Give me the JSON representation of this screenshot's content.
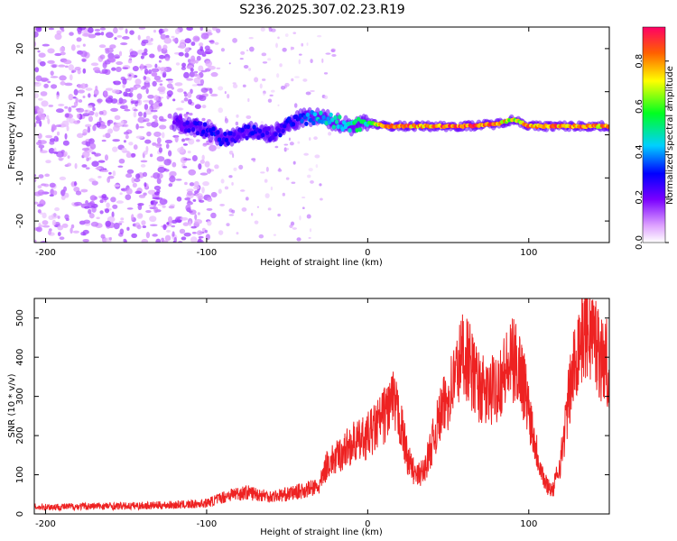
{
  "figure_title": "S236.2025.307.02.23.R19",
  "chart_data": [
    {
      "type": "heatmap",
      "title": "S236.2025.307.02.23.R19",
      "xlabel": "Height of straight line (km)",
      "ylabel": "Frequency (Hz)",
      "xlim": [
        -207,
        150
      ],
      "ylim": [
        -25,
        25
      ],
      "xticks": [
        -200,
        -100,
        0,
        100
      ],
      "yticks": [
        -20,
        -10,
        0,
        10,
        20
      ],
      "colorbar": {
        "label": "Normalized spectral amplitude",
        "range": [
          0,
          0.95
        ],
        "ticks": [
          0.0,
          0.2,
          0.4,
          0.6,
          0.8
        ]
      },
      "signal_track": {
        "x": [
          -120,
          -110,
          -100,
          -90,
          -80,
          -70,
          -60,
          -50,
          -40,
          -30,
          -20,
          -10,
          0,
          10,
          20,
          40,
          60,
          80,
          90,
          95,
          100,
          120,
          150
        ],
        "freq": [
          3,
          2,
          1,
          -1,
          0,
          1,
          0,
          2,
          4,
          4,
          3,
          2,
          3,
          2,
          2,
          2,
          2,
          2.5,
          3.5,
          3,
          2,
          2,
          2
        ],
        "amplitude": [
          0.2,
          0.25,
          0.3,
          0.3,
          0.25,
          0.3,
          0.25,
          0.3,
          0.35,
          0.45,
          0.45,
          0.5,
          0.5,
          0.85,
          0.85,
          0.85,
          0.9,
          0.85,
          0.7,
          0.7,
          0.85,
          0.85,
          0.8
        ]
      },
      "noise_region": {
        "x_from": -207,
        "x_to": -95,
        "freq_from": -25,
        "freq_to": 25,
        "amplitude": 0.1
      }
    },
    {
      "type": "line",
      "title": "",
      "xlabel": "Height of straight line (km)",
      "ylabel": "SNR (10 * v/v)",
      "xlim": [
        -207,
        150
      ],
      "ylim": [
        0,
        550
      ],
      "xticks": [
        -200,
        -100,
        0,
        100
      ],
      "yticks": [
        0,
        100,
        200,
        300,
        400,
        500
      ],
      "color": "#ee2222",
      "series": [
        {
          "name": "SNR",
          "x": [
            -207,
            -190,
            -170,
            -150,
            -130,
            -110,
            -100,
            -95,
            -85,
            -75,
            -60,
            -50,
            -40,
            -30,
            -25,
            -20,
            -15,
            -10,
            -5,
            0,
            5,
            10,
            15,
            20,
            25,
            30,
            35,
            40,
            45,
            50,
            55,
            60,
            65,
            70,
            75,
            80,
            85,
            90,
            95,
            100,
            105,
            110,
            115,
            120,
            125,
            130,
            135,
            140,
            145,
            150
          ],
          "y": [
            18,
            18,
            20,
            20,
            22,
            24,
            28,
            35,
            50,
            55,
            45,
            50,
            60,
            70,
            130,
            140,
            160,
            180,
            185,
            200,
            220,
            250,
            290,
            240,
            140,
            95,
            110,
            180,
            250,
            300,
            360,
            420,
            360,
            320,
            300,
            330,
            360,
            390,
            370,
            270,
            160,
            80,
            60,
            140,
            300,
            420,
            480,
            460,
            400,
            380
          ]
        }
      ]
    }
  ]
}
